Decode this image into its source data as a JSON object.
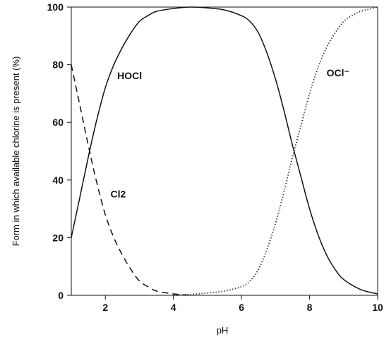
{
  "chart_data": {
    "type": "line",
    "xlabel": "pH",
    "ylabel": "Form in which available chlorine is present (%)",
    "xlim": [
      1,
      10
    ],
    "ylim": [
      0,
      100
    ],
    "xticks": [
      2,
      4,
      6,
      8,
      10
    ],
    "yticks": [
      0,
      20,
      40,
      60,
      80,
      100
    ],
    "grid": false,
    "series": [
      {
        "name": "HOCl",
        "style": "solid",
        "color": "#111111",
        "label_at": {
          "x": 2.35,
          "y": 75
        },
        "x": [
          1.0,
          1.25,
          1.5,
          1.75,
          2.0,
          2.25,
          2.5,
          2.75,
          3.0,
          3.25,
          3.5,
          4.0,
          4.5,
          5.0,
          5.5,
          6.0,
          6.25,
          6.5,
          6.75,
          7.0,
          7.25,
          7.5,
          7.75,
          8.0,
          8.25,
          8.5,
          8.75,
          9.0,
          9.5,
          10.0
        ],
        "y": [
          20,
          34,
          48,
          61,
          72,
          80,
          86,
          91,
          95,
          97,
          98.5,
          99.5,
          100,
          99.7,
          99,
          97,
          95,
          91,
          84,
          75,
          64,
          52,
          41,
          30,
          21,
          14,
          9,
          5.5,
          2,
          0.5
        ]
      },
      {
        "name": "Cl2",
        "style": "dashed",
        "color": "#111111",
        "label_at": {
          "x": 2.15,
          "y": 34
        },
        "x": [
          1.0,
          1.25,
          1.5,
          1.75,
          2.0,
          2.25,
          2.5,
          2.75,
          3.0,
          3.25,
          3.5,
          4.0,
          4.5
        ],
        "y": [
          80,
          66,
          52,
          39,
          28,
          20,
          14,
          9,
          5,
          3,
          1.5,
          0.5,
          0
        ]
      },
      {
        "name": "OCl⁻",
        "style": "dotted",
        "color": "#111111",
        "label_at": {
          "x": 8.5,
          "y": 76
        },
        "x": [
          4.0,
          4.5,
          5.0,
          5.5,
          6.0,
          6.25,
          6.5,
          6.75,
          7.0,
          7.25,
          7.5,
          7.75,
          8.0,
          8.25,
          8.5,
          8.75,
          9.0,
          9.25,
          9.5,
          10.0
        ],
        "y": [
          0,
          0.3,
          0.8,
          1.5,
          3,
          5,
          9,
          16,
          25,
          36,
          48,
          59,
          70,
          79,
          86,
          91,
          95,
          97,
          98.5,
          100
        ]
      }
    ]
  }
}
